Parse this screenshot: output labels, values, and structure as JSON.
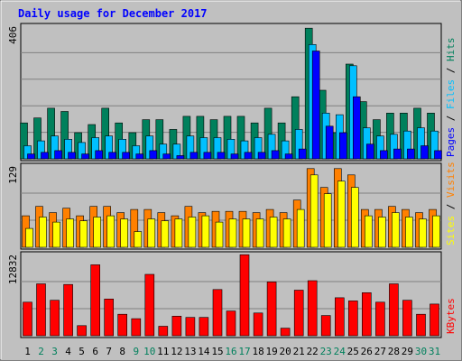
{
  "chart_data": {
    "type": "bar",
    "title": "Daily usage for December 2017",
    "days": [
      "1",
      "2",
      "3",
      "4",
      "5",
      "6",
      "7",
      "8",
      "9",
      "10",
      "11",
      "12",
      "13",
      "14",
      "15",
      "16",
      "17",
      "18",
      "19",
      "20",
      "21",
      "22",
      "23",
      "24",
      "25",
      "26",
      "27",
      "28",
      "29",
      "30",
      "31"
    ],
    "weekend_days": [
      "2",
      "3",
      "9",
      "10",
      "16",
      "17",
      "23",
      "24",
      "30",
      "31"
    ],
    "panels": [
      {
        "ymax_label": "406",
        "ylim": [
          0,
          406
        ],
        "legend": [
          "Pages",
          "Files",
          "Hits"
        ],
        "legend_separator": " / ",
        "series": [
          {
            "name": "Hits",
            "color": "#00805c",
            "values": [
              110,
              125,
              155,
              145,
              80,
              105,
              155,
              110,
              80,
              120,
              120,
              90,
              130,
              130,
              120,
              130,
              130,
              110,
              155,
              110,
              190,
              400,
              210,
              80,
              290,
              175,
              120,
              140,
              140,
              155,
              140
            ]
          },
          {
            "name": "Files",
            "color": "#00c0ff",
            "values": [
              40,
              55,
              70,
              60,
              50,
              65,
              70,
              60,
              40,
              70,
              45,
              45,
              70,
              65,
              65,
              60,
              55,
              65,
              75,
              55,
              90,
              350,
              140,
              135,
              285,
              95,
              70,
              75,
              85,
              95,
              85
            ]
          },
          {
            "name": "Pages",
            "color": "#0000ff",
            "values": [
              15,
              20,
              25,
              20,
              15,
              25,
              20,
              20,
              15,
              25,
              15,
              10,
              20,
              20,
              20,
              15,
              20,
              20,
              25,
              15,
              30,
              330,
              100,
              80,
              190,
              45,
              25,
              30,
              30,
              40,
              25
            ]
          }
        ]
      },
      {
        "ymax_label": "129",
        "ylim": [
          0,
          129
        ],
        "legend": [
          "Sites",
          "Visits"
        ],
        "legend_separator": " / ",
        "series": [
          {
            "name": "Visits",
            "color": "#ff8000",
            "values": [
              50,
              65,
              55,
              62,
              50,
              65,
              65,
              55,
              60,
              60,
              55,
              50,
              65,
              55,
              57,
              57,
              57,
              55,
              60,
              55,
              75,
              125,
              95,
              125,
              115,
              60,
              60,
              65,
              60,
              55,
              60
            ]
          },
          {
            "name": "Sites",
            "color": "#ffff00",
            "values": [
              30,
              48,
              40,
              45,
              42,
              48,
              50,
              45,
              25,
              45,
              42,
              45,
              48,
              50,
              40,
              45,
              45,
              45,
              48,
              45,
              60,
              115,
              85,
              105,
              95,
              50,
              48,
              55,
              48,
              45,
              50
            ]
          }
        ]
      },
      {
        "ymax_label": "12832",
        "ylim": [
          0,
          12832
        ],
        "legend": [
          "KBytes"
        ],
        "legend_separator": " / ",
        "series": [
          {
            "name": "KBytes",
            "color": "#ff0000",
            "values": [
              5300,
              8200,
              5600,
              8100,
              1600,
              11200,
              5800,
              3400,
              2700,
              9700,
              1500,
              3100,
              2900,
              2900,
              7300,
              3900,
              12800,
              3600,
              8500,
              1200,
              7200,
              8700,
              3200,
              6000,
              5500,
              6800,
              5300,
              8200,
              5600,
              3400,
              5000
            ]
          }
        ]
      }
    ]
  },
  "colors": {
    "title": "#0000ff",
    "ylabel": "#000000",
    "weekday_label": "#000000",
    "weekend_label": "#00805c",
    "background": "#c0c0c0",
    "gridline": "#808080"
  }
}
